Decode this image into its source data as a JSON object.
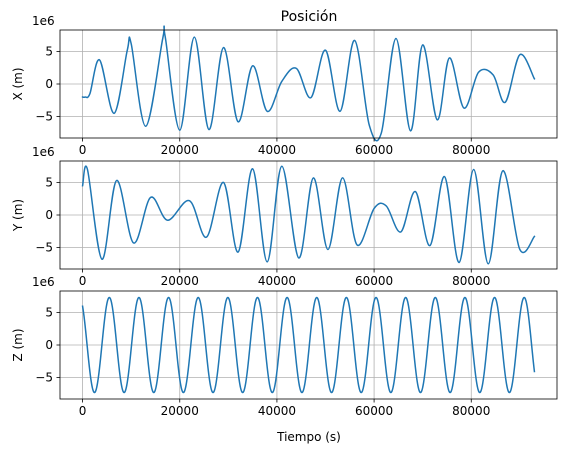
{
  "figure": {
    "title": "Posición",
    "xlabel": "Tiempo (s)",
    "line_color": "#1f77b4"
  },
  "chart_data": [
    {
      "type": "line",
      "title": "Posición",
      "xlabel": "",
      "ylabel": "X (m)",
      "offset_text": "1e6",
      "xlim": [
        -4650,
        97650
      ],
      "ylim": [
        -8.3,
        8.3
      ],
      "x_ticks": [
        0,
        20000,
        40000,
        60000,
        80000
      ],
      "x_tick_labels": [
        "0",
        "20000",
        "40000",
        "60000",
        "80000"
      ],
      "y_ticks": [
        -5,
        0,
        5
      ],
      "y_tick_labels": [
        "−5",
        "0",
        "5"
      ],
      "grid": true,
      "series_points": {
        "x": [
          0,
          500,
          1500,
          3500,
          6500,
          9200,
          10000,
          13000,
          16500,
          17000,
          20000,
          23000,
          26000,
          29000,
          32000,
          35000,
          38000,
          41000,
          44000,
          47000,
          50000,
          53000,
          56000,
          59000,
          61500,
          64500,
          67500,
          70000,
          73000,
          75500,
          78500,
          81500,
          84500,
          87000,
          90000,
          93000
        ],
        "y": [
          -2.0,
          -2.0,
          -1.5,
          3.7,
          -4.5,
          5.2,
          6.2,
          -6.5,
          7.0,
          7.3,
          -7.1,
          7.2,
          -7.0,
          5.6,
          -5.8,
          2.8,
          -4.2,
          0.4,
          2.4,
          -2.1,
          5.2,
          -4.2,
          6.7,
          -6.3,
          -7.5,
          7.0,
          -7.2,
          6.0,
          -5.5,
          4.0,
          -3.7,
          1.8,
          1.4,
          -2.8,
          4.5,
          0.8
        ]
      }
    },
    {
      "type": "line",
      "xlabel": "",
      "ylabel": "Y (m)",
      "offset_text": "1e6",
      "xlim": [
        -4650,
        97650
      ],
      "ylim": [
        -8.3,
        8.3
      ],
      "x_ticks": [
        0,
        20000,
        40000,
        60000,
        80000
      ],
      "x_tick_labels": [
        "0",
        "20000",
        "40000",
        "60000",
        "80000"
      ],
      "y_ticks": [
        -5,
        0,
        5
      ],
      "y_tick_labels": [
        "−5",
        "0",
        "5"
      ],
      "grid": true,
      "series_points": {
        "x": [
          0,
          1000,
          4000,
          7000,
          10500,
          14000,
          17500,
          22000,
          25500,
          29000,
          32000,
          35000,
          38000,
          41000,
          44500,
          47500,
          50500,
          53500,
          56500,
          60000,
          62500,
          65500,
          68500,
          71500,
          74500,
          77500,
          80500,
          83500,
          86500,
          90000,
          93000
        ],
        "y": [
          4.5,
          7.0,
          -6.8,
          5.3,
          -4.3,
          2.7,
          -0.8,
          2.2,
          -3.4,
          5.0,
          -5.7,
          7.1,
          -7.2,
          7.5,
          -6.6,
          5.7,
          -5.3,
          5.7,
          -4.6,
          1.0,
          1.4,
          -2.6,
          3.6,
          -4.7,
          5.9,
          -7.3,
          7.0,
          -7.5,
          6.8,
          -5.3,
          -3.3
        ]
      }
    },
    {
      "type": "line",
      "xlabel": "Tiempo (s)",
      "ylabel": "Z (m)",
      "offset_text": "1e6",
      "xlim": [
        -4650,
        97650
      ],
      "ylim": [
        -8.3,
        8.3
      ],
      "x_ticks": [
        0,
        20000,
        40000,
        60000,
        80000
      ],
      "x_tick_labels": [
        "0",
        "20000",
        "40000",
        "60000",
        "80000"
      ],
      "y_ticks": [
        -5,
        0,
        5
      ],
      "y_tick_labels": [
        "−5",
        "0",
        "5"
      ],
      "grid": true,
      "series_function": {
        "kind": "cosine",
        "amplitude": 7.3,
        "period": 6100,
        "peak_at": 5500,
        "x_start": 0,
        "x_end": 93000,
        "y_start": 5.0
      }
    }
  ]
}
